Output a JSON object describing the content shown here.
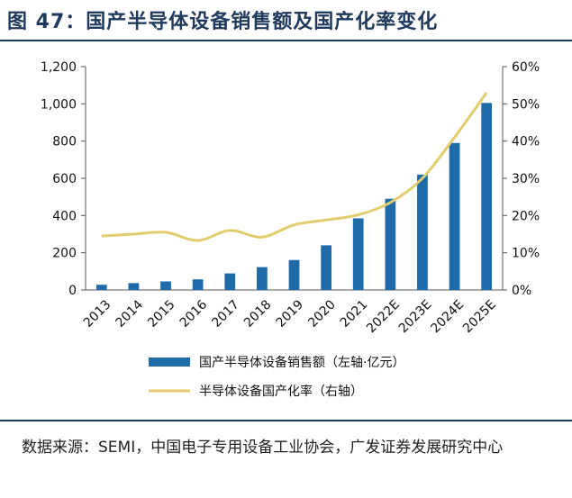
{
  "figure": {
    "title": "图 47：国产半导体设备销售额及国产化率变化",
    "source": "数据来源：SEMI，中国电子专用设备工业协会，广发证券发展研究中心"
  },
  "chart_data": {
    "type": "bar+line",
    "categories": [
      "2013",
      "2014",
      "2015",
      "2016",
      "2017",
      "2018",
      "2019",
      "2020",
      "2021",
      "2022E",
      "2023E",
      "2024E",
      "2025E"
    ],
    "series": [
      {
        "name": "国产半导体设备销售额（左轴·亿元）",
        "type": "bar",
        "axis": "left",
        "color": "#1f6aa8",
        "values": [
          28,
          37,
          46,
          57,
          89,
          123,
          161,
          240,
          385,
          490,
          620,
          790,
          1005
        ]
      },
      {
        "name": "半导体设备国产化率（右轴）",
        "type": "line",
        "axis": "right",
        "color": "#e2cd6d",
        "values": [
          14.5,
          15.0,
          15.5,
          13.3,
          16.0,
          14.2,
          17.5,
          18.8,
          20.2,
          23.5,
          30.0,
          41.0,
          53.0
        ]
      }
    ],
    "y_left": {
      "min": 0,
      "max": 1200,
      "ticks": [
        0,
        200,
        400,
        600,
        800,
        1000,
        1200
      ],
      "tick_labels": [
        "0",
        "200",
        "400",
        "600",
        "800",
        "1,000",
        "1,200"
      ]
    },
    "y_right": {
      "min": 0,
      "max": 60,
      "ticks": [
        0,
        10,
        20,
        30,
        40,
        50,
        60
      ],
      "tick_labels": [
        "0%",
        "10%",
        "20%",
        "30%",
        "40%",
        "50%",
        "60%"
      ]
    },
    "legend_position": "bottom-center",
    "grid": false
  }
}
